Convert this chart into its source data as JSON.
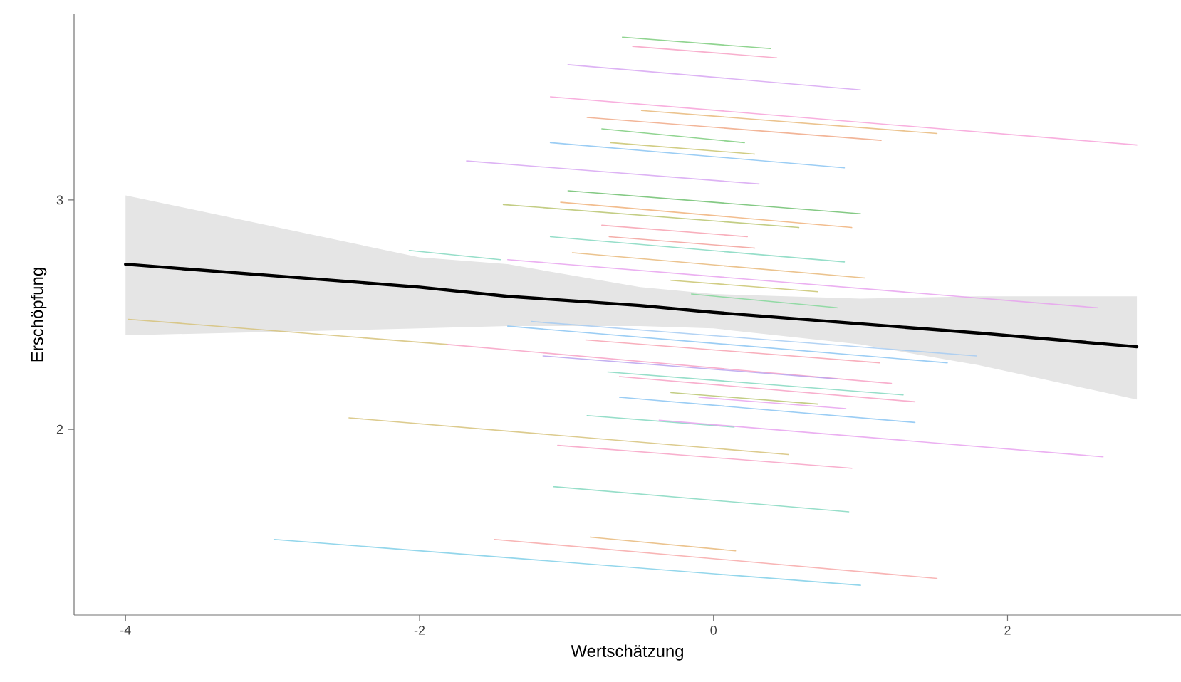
{
  "chart_data": {
    "type": "line",
    "xlabel": "Wertschätzung",
    "ylabel": "Erschöpfung",
    "xlim": [
      -4.35,
      3.18
    ],
    "ylim": [
      1.19,
      3.81
    ],
    "xticks": [
      -4,
      -2,
      0,
      2
    ],
    "yticks": [
      2,
      3
    ],
    "grid": false,
    "series": [
      {
        "color": "#7dcc7d",
        "x": [
          -0.62,
          0.39
        ],
        "values": [
          3.71,
          3.66
        ]
      },
      {
        "color": "#f7a1c4",
        "x": [
          -0.55,
          0.43
        ],
        "values": [
          3.67,
          3.62
        ]
      },
      {
        "color": "#d7a6f2",
        "x": [
          -0.99,
          1.0
        ],
        "values": [
          3.59,
          3.48
        ]
      },
      {
        "color": "#f7a1d8",
        "x": [
          -1.11,
          2.88
        ],
        "values": [
          3.45,
          3.24
        ]
      },
      {
        "color": "#e8b87a",
        "x": [
          -0.49,
          1.52
        ],
        "values": [
          3.39,
          3.29
        ]
      },
      {
        "color": "#f0a886",
        "x": [
          -0.86,
          1.14
        ],
        "values": [
          3.36,
          3.26
        ]
      },
      {
        "color": "#7dcc7d",
        "x": [
          -0.76,
          0.21
        ],
        "values": [
          3.31,
          3.25
        ]
      },
      {
        "color": "#c9c46e",
        "x": [
          -0.7,
          0.28
        ],
        "values": [
          3.25,
          3.2
        ]
      },
      {
        "color": "#8ac4f2",
        "x": [
          -1.11,
          0.89
        ],
        "values": [
          3.25,
          3.14
        ]
      },
      {
        "color": "#d7a6f2",
        "x": [
          -1.68,
          0.31
        ],
        "values": [
          3.17,
          3.07
        ]
      },
      {
        "color": "#6fbf6f",
        "x": [
          -0.99,
          1.0
        ],
        "values": [
          3.04,
          2.94
        ]
      },
      {
        "color": "#b9c46e",
        "x": [
          -1.43,
          0.58
        ],
        "values": [
          2.98,
          2.88
        ]
      },
      {
        "color": "#f0b27a",
        "x": [
          -1.04,
          0.94
        ],
        "values": [
          2.99,
          2.88
        ]
      },
      {
        "color": "#f7a1b0",
        "x": [
          -0.76,
          0.23
        ],
        "values": [
          2.89,
          2.84
        ]
      },
      {
        "color": "#f2a09a",
        "x": [
          -0.71,
          0.28
        ],
        "values": [
          2.84,
          2.79
        ]
      },
      {
        "color": "#84d8c0",
        "x": [
          -1.11,
          0.89
        ],
        "values": [
          2.84,
          2.73
        ]
      },
      {
        "color": "#84d8c0",
        "x": [
          -2.07,
          -1.45
        ],
        "values": [
          2.78,
          2.74
        ]
      },
      {
        "color": "#e8a2ee",
        "x": [
          -1.4,
          2.61
        ],
        "values": [
          2.74,
          2.53
        ]
      },
      {
        "color": "#e8b87a",
        "x": [
          -0.96,
          1.03
        ],
        "values": [
          2.77,
          2.66
        ]
      },
      {
        "color": "#c9c46e",
        "x": [
          -0.29,
          0.71
        ],
        "values": [
          2.65,
          2.6
        ]
      },
      {
        "color": "#84d89a",
        "x": [
          -0.15,
          0.84
        ],
        "values": [
          2.59,
          2.53
        ]
      },
      {
        "color": "#d6c27a",
        "x": [
          -3.98,
          -1.81
        ],
        "values": [
          2.48,
          2.37
        ]
      },
      {
        "color": "#f7a1c4",
        "x": [
          -1.81,
          1.21
        ],
        "values": [
          2.37,
          2.2
        ]
      },
      {
        "color": "#b9a2ee",
        "x": [
          -1.16,
          0.84
        ],
        "values": [
          2.32,
          2.22
        ]
      },
      {
        "color": "#a6cbf2",
        "x": [
          -1.24,
          1.79
        ],
        "values": [
          2.47,
          2.32
        ]
      },
      {
        "color": "#8ac4f2",
        "x": [
          -1.4,
          1.59
        ],
        "values": [
          2.45,
          2.29
        ]
      },
      {
        "color": "#f7a1b0",
        "x": [
          -0.87,
          1.13
        ],
        "values": [
          2.39,
          2.29
        ]
      },
      {
        "color": "#84d8c0",
        "x": [
          -0.72,
          1.29
        ],
        "values": [
          2.25,
          2.15
        ]
      },
      {
        "color": "#f7a1c4",
        "x": [
          -0.64,
          1.37
        ],
        "values": [
          2.23,
          2.12
        ]
      },
      {
        "color": "#b9c46e",
        "x": [
          -0.29,
          0.71
        ],
        "values": [
          2.16,
          2.11
        ]
      },
      {
        "color": "#e8a2ee",
        "x": [
          -0.1,
          0.9
        ],
        "values": [
          2.14,
          2.09
        ]
      },
      {
        "color": "#8ac4f2",
        "x": [
          -0.64,
          1.37
        ],
        "values": [
          2.14,
          2.03
        ]
      },
      {
        "color": "#84d8c0",
        "x": [
          -0.86,
          0.14
        ],
        "values": [
          2.06,
          2.01
        ]
      },
      {
        "color": "#e8a2ee",
        "x": [
          -0.37,
          2.65
        ],
        "values": [
          2.04,
          1.88
        ]
      },
      {
        "color": "#d6c27a",
        "x": [
          -2.48,
          0.51
        ],
        "values": [
          2.05,
          1.89
        ]
      },
      {
        "color": "#f7a1c4",
        "x": [
          -1.06,
          0.94
        ],
        "values": [
          1.93,
          1.83
        ]
      },
      {
        "color": "#84d8c0",
        "x": [
          -1.09,
          0.92
        ],
        "values": [
          1.75,
          1.64
        ]
      },
      {
        "color": "#e8b87a",
        "x": [
          -0.84,
          0.15
        ],
        "values": [
          1.53,
          1.47
        ]
      },
      {
        "color": "#f7a8a8",
        "x": [
          -1.49,
          1.52
        ],
        "values": [
          1.52,
          1.35
        ]
      },
      {
        "color": "#80cfe8",
        "x": [
          -2.99,
          1.0
        ],
        "values": [
          1.52,
          1.32
        ]
      },
      {
        "color": "#000000",
        "x": [
          -4,
          -2,
          -1.4,
          -0.5,
          0,
          1,
          1.8,
          2.88
        ],
        "values": [
          2.72,
          2.62,
          2.58,
          2.54,
          2.51,
          2.46,
          2.42,
          2.36
        ],
        "lower": [
          2.41,
          2.44,
          2.45,
          2.45,
          2.44,
          2.37,
          2.28,
          2.13
        ],
        "upper": [
          3.02,
          2.75,
          2.72,
          2.62,
          2.59,
          2.57,
          2.58,
          2.58
        ]
      }
    ]
  }
}
